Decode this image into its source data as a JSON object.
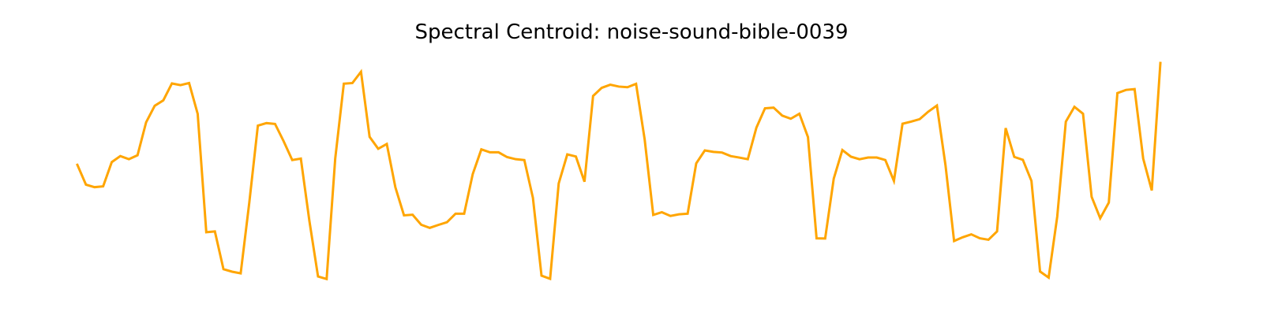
{
  "chart_data": {
    "type": "line",
    "title": "Spectral Centroid: noise-sound-bible-0039",
    "xlabel": "",
    "ylabel": "",
    "axes_visible": false,
    "grid": false,
    "legend": "none",
    "x_range": [
      0,
      126
    ],
    "y_range": [
      0,
      1
    ],
    "color": "#ffa500",
    "series": [
      {
        "values": [
          0.512,
          0.417,
          0.405,
          0.409,
          0.525,
          0.554,
          0.539,
          0.558,
          0.716,
          0.795,
          0.821,
          0.902,
          0.894,
          0.904,
          0.756,
          0.189,
          0.193,
          0.012,
          0.0,
          -0.008,
          0.33,
          0.7,
          0.712,
          0.708,
          0.625,
          0.535,
          0.542,
          0.242,
          -0.023,
          -0.035,
          0.542,
          0.901,
          0.904,
          0.958,
          0.646,
          0.589,
          0.612,
          0.404,
          0.27,
          0.273,
          0.225,
          0.21,
          0.224,
          0.237,
          0.278,
          0.278,
          0.468,
          0.586,
          0.572,
          0.572,
          0.549,
          0.539,
          0.535,
          0.354,
          -0.019,
          -0.034,
          0.423,
          0.562,
          0.552,
          0.431,
          0.842,
          0.881,
          0.896,
          0.887,
          0.884,
          0.9,
          0.634,
          0.272,
          0.285,
          0.267,
          0.275,
          0.278,
          0.519,
          0.581,
          0.574,
          0.571,
          0.554,
          0.547,
          0.539,
          0.69,
          0.783,
          0.786,
          0.748,
          0.733,
          0.757,
          0.645,
          0.16,
          0.159,
          0.446,
          0.583,
          0.551,
          0.539,
          0.547,
          0.547,
          0.535,
          0.435,
          0.709,
          0.719,
          0.731,
          0.767,
          0.796,
          0.51,
          0.147,
          0.165,
          0.179,
          0.16,
          0.153,
          0.193,
          0.688,
          0.55,
          0.536,
          0.435,
          0.001,
          -0.028,
          0.264,
          0.719,
          0.79,
          0.757,
          0.359,
          0.256,
          0.331,
          0.856,
          0.871,
          0.875,
          0.542,
          0.389,
          1.0
        ]
      }
    ]
  }
}
